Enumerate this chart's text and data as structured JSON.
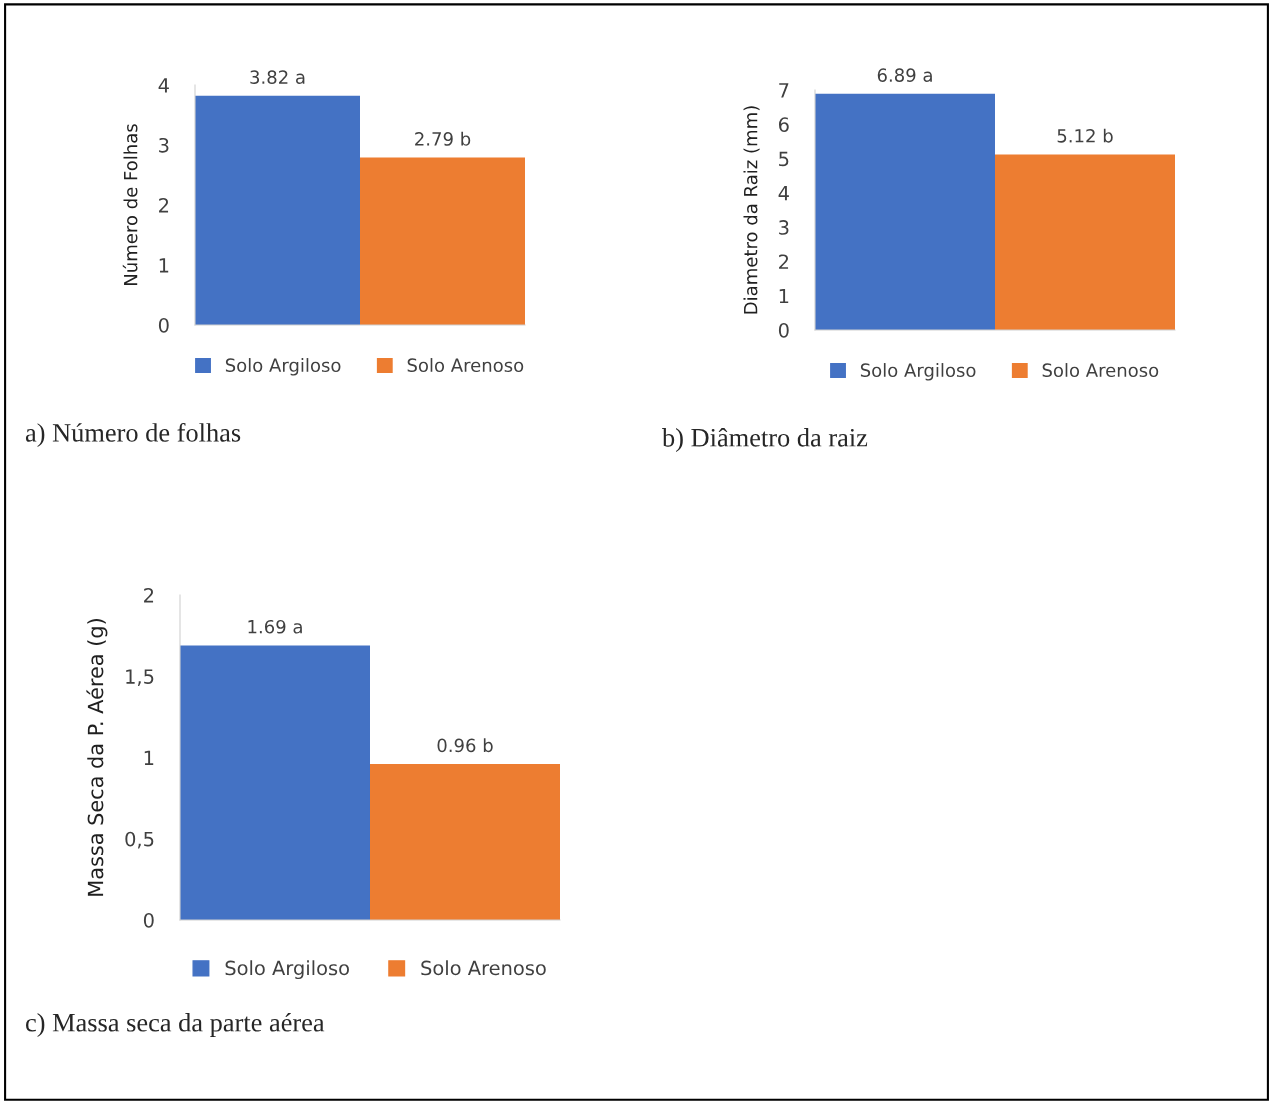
{
  "chart_data": [
    {
      "type": "bar",
      "ylabel": "Número de Folhas",
      "categories": [
        null
      ],
      "ylim": [
        0,
        4
      ],
      "yticks": [
        0,
        1,
        2,
        3,
        4
      ],
      "grid": false,
      "legend": "bottom",
      "annotations": [
        "a) Número de folhas"
      ],
      "series": [
        {
          "name": "Solo Argiloso",
          "color": "#4472c4",
          "values": [
            3.82
          ],
          "value_labels": [
            "3.82 a"
          ]
        },
        {
          "name": "Solo Arenoso",
          "color": "#ed7d31",
          "values": [
            2.79
          ],
          "value_labels": [
            "2.79 b"
          ]
        }
      ]
    },
    {
      "type": "bar",
      "ylabel": "Diametro da Raiz (mm)",
      "categories": [
        null
      ],
      "ylim": [
        0,
        7
      ],
      "yticks": [
        0,
        1,
        2,
        3,
        4,
        5,
        6,
        7
      ],
      "grid": false,
      "legend": "bottom",
      "annotations": [
        "b) Diâmetro da raiz"
      ],
      "series": [
        {
          "name": "Solo Argiloso",
          "color": "#4472c4",
          "values": [
            6.89
          ],
          "value_labels": [
            "6.89 a"
          ]
        },
        {
          "name": "Solo Arenoso",
          "color": "#ed7d31",
          "values": [
            5.12
          ],
          "value_labels": [
            "5.12 b"
          ]
        }
      ]
    },
    {
      "type": "bar",
      "ylabel": "Massa Seca da P. Aérea (g)",
      "categories": [
        null
      ],
      "ylim": [
        0,
        2
      ],
      "yticks": [
        0,
        {
          "value": 0.5,
          "label": "0,5"
        },
        1,
        {
          "value": 1.5,
          "label": "1,5"
        },
        2
      ],
      "grid": false,
      "legend": "bottom",
      "annotations": [
        "c) Massa seca da parte aérea"
      ],
      "series": [
        {
          "name": "Solo Argiloso",
          "color": "#4472c4",
          "values": [
            1.69
          ],
          "value_labels": [
            "1.69 a"
          ]
        },
        {
          "name": "Solo Arenoso",
          "color": "#ed7d31",
          "values": [
            0.96
          ],
          "value_labels": [
            "0.96 b"
          ]
        }
      ]
    }
  ]
}
